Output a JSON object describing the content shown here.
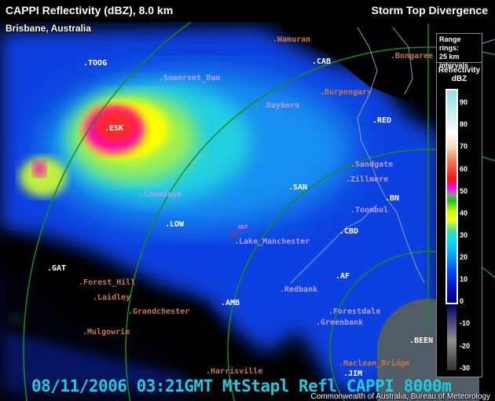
{
  "header": {
    "title": "CAPPI Reflectivity (dBZ), 8.0 km",
    "product": "Storm Top Divergence",
    "location": "Brisbane, Australia"
  },
  "legend": {
    "range_rings": "Range rings: 25 km intervals",
    "range_rings_line1": "Range rings:",
    "range_rings_line2": "25 km",
    "range_rings_line3": "intervals",
    "title_line1": "Reflectivity",
    "title_line2": "dBZ",
    "ticks": [
      "90",
      "80",
      "70",
      "60",
      "50",
      "40",
      "30",
      "20",
      "10",
      "0",
      "-10",
      "-20",
      "-30"
    ]
  },
  "map_labels": {
    "radar_sites": [
      ".TOOG",
      ".CAB",
      ".RED",
      ".ESK",
      ".SAN",
      ".BN",
      ".LOW",
      ".CBD",
      ".GAT",
      ".AF",
      ".AMB",
      ".BEEN",
      ".JIM"
    ],
    "towns": [
      ".Wamuran",
      ".Bongaree",
      ".Burpengary",
      ".Forest_Hill",
      ".Laidley",
      ".Grandchester",
      ".Mulgowrie",
      ".Harrisville",
      ".Maclean_Bridge"
    ],
    "places": [
      ".Somerset_Dam",
      ".Dayboro",
      ".Sandgate",
      ".Zillmere",
      ".Coominya",
      ".Toombul",
      ".Lake_Manchester",
      ".Redbank",
      ".Forestdale",
      ".Greenbank"
    ],
    "ref_marker": "REF"
  },
  "stamp": "08/11/2006 03:21GMT MtStapl Refl CAPPI 8000m",
  "credit": "Commonwealth of Australia, Bureau of Meteorology",
  "colors": {
    "ring": "#1a8a1a",
    "coast": "#8aa0b0",
    "stamp": "#22c8e0",
    "site_label": "#ffffff",
    "town_label": "#c8784a",
    "place_label": "#b79cf0"
  }
}
